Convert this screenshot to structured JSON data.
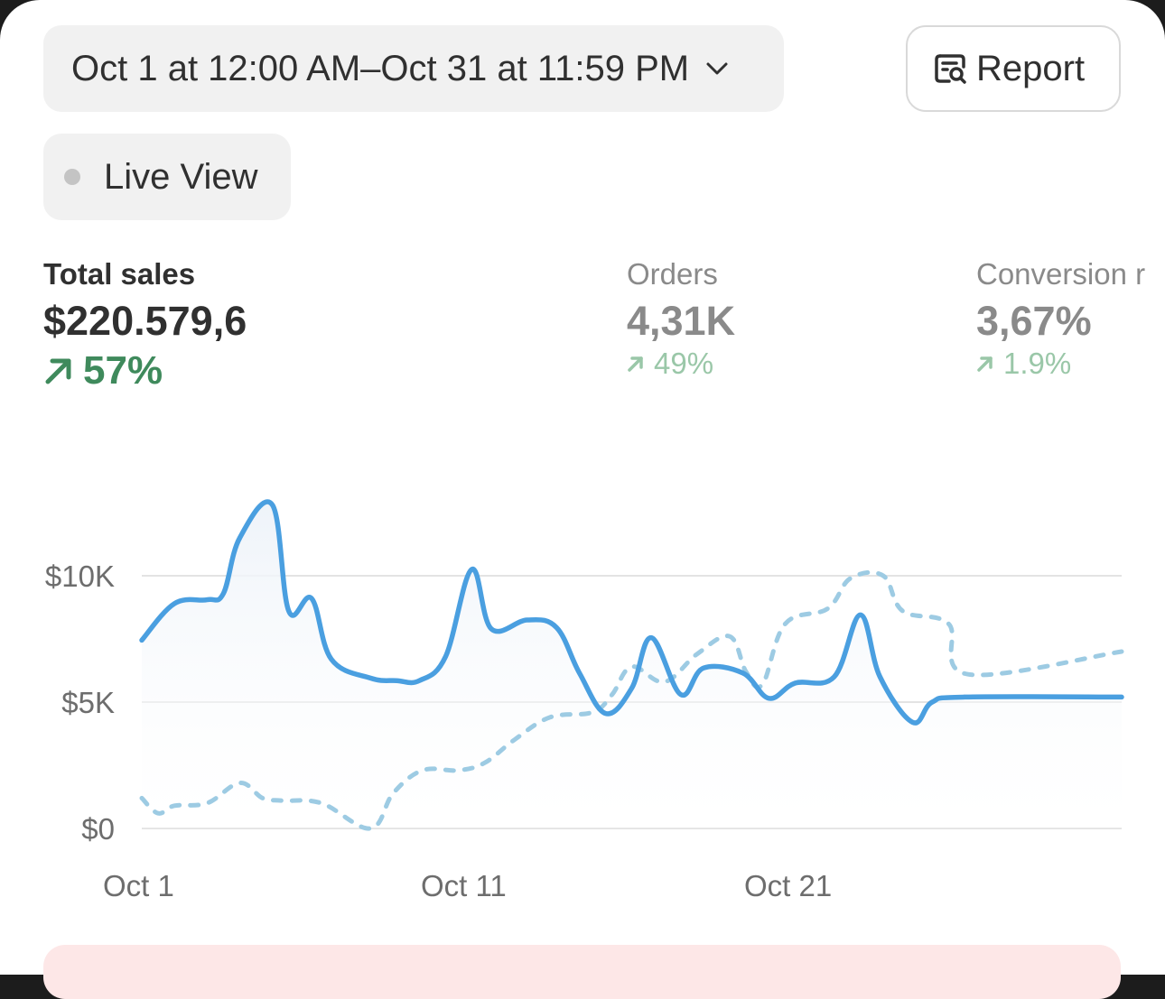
{
  "header": {
    "date_range": "Oct 1 at 12:00 AM–Oct 31 at 11:59 PM",
    "report_label": "Report",
    "live_view_label": "Live View"
  },
  "metrics": {
    "total_sales": {
      "label": "Total sales",
      "value": "$220.579,6",
      "delta": "57%"
    },
    "orders": {
      "label": "Orders",
      "value": "4,31K",
      "delta": "49%"
    },
    "conversion": {
      "label": "Conversion r",
      "value": "3,67%",
      "delta": "1.9%"
    }
  },
  "colors": {
    "primary_line": "#4a9fe0",
    "comparison_line": "#9dcbe3",
    "positive": "#3f8a5c",
    "positive_muted": "#9ac7a8"
  },
  "chart_data": {
    "type": "line",
    "x_tick_labels": [
      "Oct 1",
      "Oct 11",
      "Oct 21"
    ],
    "y_tick_labels": [
      "$0",
      "$5K",
      "$10K"
    ],
    "ylim": [
      0,
      10000
    ],
    "grid": true,
    "x": [
      1,
      1.5,
      2,
      2.5,
      3,
      3.5,
      4,
      4.5,
      5,
      5.5,
      6,
      6.5,
      7,
      7.5,
      8,
      8.5,
      9,
      9.5,
      10,
      10.5,
      11,
      11.5,
      12,
      12.5,
      13,
      13.5,
      14,
      14.5,
      15,
      15.5,
      16,
      16.5,
      17,
      17.5,
      18,
      18.5,
      19,
      19.5,
      20,
      20.5,
      21,
      21.5,
      22,
      22.5,
      23,
      23.5,
      24,
      24.5,
      25,
      25.5,
      26,
      26.5,
      27,
      27.5,
      28,
      28.5,
      29,
      29.5,
      30,
      30.5,
      31
    ],
    "series": [
      {
        "values": [
          7450,
          8900,
          9050,
          9300,
          11500,
          12800,
          8600,
          9100,
          6700,
          5950,
          5850,
          5850,
          6800,
          10250,
          7900,
          8250,
          7950,
          6150,
          4550,
          5550,
          7550,
          5300,
          6350,
          6150,
          5150,
          5750,
          6000,
          8450,
          6000,
          4200,
          5000,
          5200,
          5200
        ],
        "x": [
          1,
          2,
          3,
          3.5,
          4,
          5,
          5.5,
          6.2,
          6.8,
          8,
          8.8,
          9.5,
          10.3,
          11.1,
          11.7,
          12.8,
          13.7,
          14.4,
          15.2,
          16,
          16.6,
          17.5,
          18.2,
          19.4,
          20.2,
          21,
          22.2,
          23,
          23.6,
          24.6,
          25.2,
          26.2,
          31
        ]
      },
      {
        "values": [
          1200,
          600,
          900,
          1000,
          1800,
          1200,
          1100,
          1000,
          0,
          1400,
          2300,
          2300,
          2600,
          3500,
          4400,
          4600,
          5300,
          6400,
          5800,
          6900,
          7600,
          6200,
          5700,
          8100,
          8700,
          9900,
          10000,
          8600,
          8100,
          6100,
          7000
        ],
        "x": [
          1,
          1.5,
          2,
          3,
          4,
          4.7,
          5.3,
          6.5,
          8,
          8.7,
          9.6,
          10.7,
          11.5,
          12.4,
          13.5,
          14.8,
          15.4,
          16,
          17,
          18,
          19,
          19.5,
          20,
          20.7,
          22,
          22.7,
          23.7,
          24.3,
          25.7,
          26.3,
          31
        ]
      }
    ]
  }
}
